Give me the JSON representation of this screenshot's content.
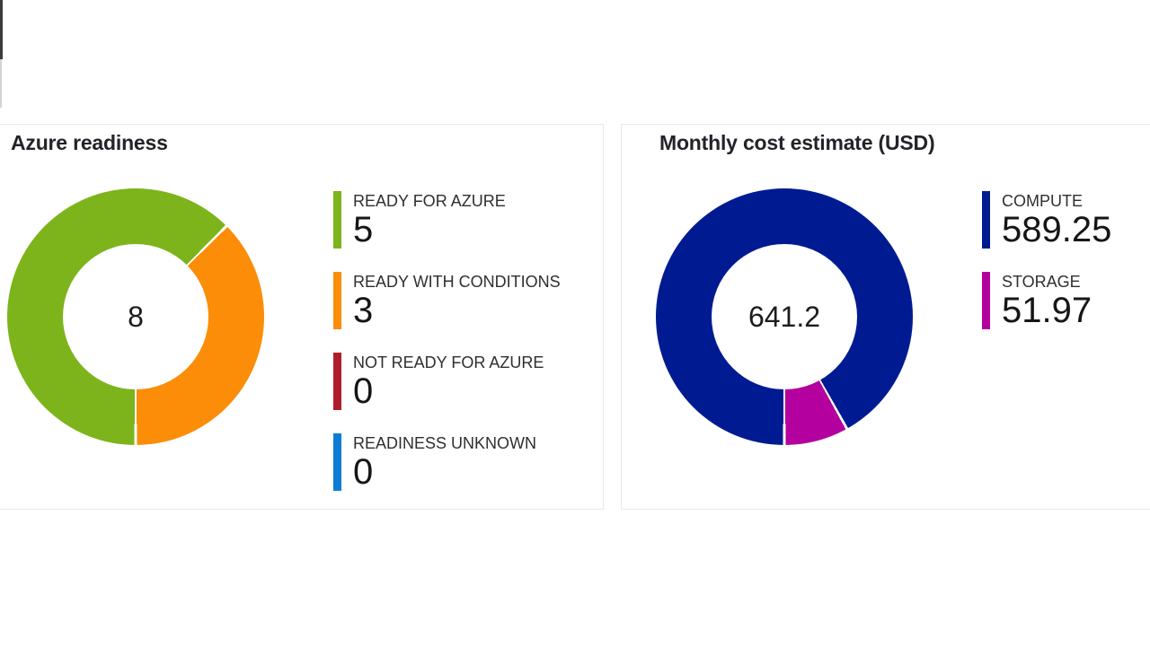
{
  "cards": [
    {
      "title": "Azure readiness"
    },
    {
      "title": "Monthly cost estimate (USD)"
    }
  ],
  "chart_data": [
    {
      "type": "pie",
      "title": "Azure readiness",
      "center_label": "8",
      "total": 8,
      "start_angle_deg": 180,
      "direction": "clockwise",
      "donut_hole_ratio": 0.57,
      "legend_position": "right",
      "slices": [
        {
          "label": "READY FOR AZURE",
          "value": 5,
          "color": "#7db41c"
        },
        {
          "label": "READY WITH CONDITIONS",
          "value": 3,
          "color": "#fb8d09"
        },
        {
          "label": "NOT READY FOR AZURE",
          "value": 0,
          "color": "#b01e2e"
        },
        {
          "label": "READINESS UNKNOWN",
          "value": 0,
          "color": "#0c7cd5"
        }
      ]
    },
    {
      "type": "pie",
      "title": "Monthly cost estimate (USD)",
      "center_label": "641.2",
      "total": 641.22,
      "start_angle_deg": 180,
      "direction": "clockwise",
      "donut_hole_ratio": 0.57,
      "legend_position": "right",
      "slices": [
        {
          "label": "COMPUTE",
          "value": 589.25,
          "color": "#001b92"
        },
        {
          "label": "STORAGE",
          "value": 51.97,
          "color": "#b4009e"
        }
      ]
    }
  ]
}
